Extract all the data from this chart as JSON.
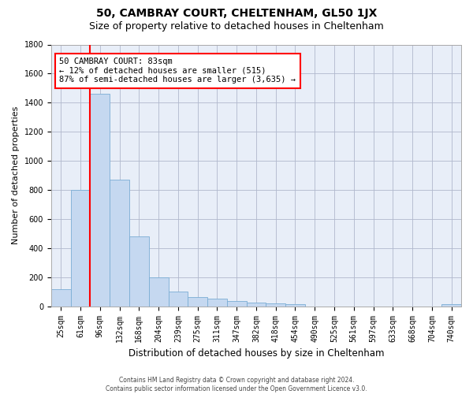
{
  "title": "50, CAMBRAY COURT, CHELTENHAM, GL50 1JX",
  "subtitle": "Size of property relative to detached houses in Cheltenham",
  "xlabel": "Distribution of detached houses by size in Cheltenham",
  "ylabel": "Number of detached properties",
  "footer_line1": "Contains HM Land Registry data © Crown copyright and database right 2024.",
  "footer_line2": "Contains public sector information licensed under the Open Government Licence v3.0.",
  "categories": [
    "25sqm",
    "61sqm",
    "96sqm",
    "132sqm",
    "168sqm",
    "204sqm",
    "239sqm",
    "275sqm",
    "311sqm",
    "347sqm",
    "382sqm",
    "418sqm",
    "454sqm",
    "490sqm",
    "525sqm",
    "561sqm",
    "597sqm",
    "633sqm",
    "668sqm",
    "704sqm",
    "740sqm"
  ],
  "values": [
    120,
    800,
    1460,
    870,
    480,
    200,
    100,
    65,
    50,
    35,
    28,
    20,
    12,
    0,
    0,
    0,
    0,
    0,
    0,
    0,
    15
  ],
  "bar_color": "#c5d8f0",
  "bar_edge_color": "#7aadd4",
  "vline_x": 1.5,
  "vline_color": "red",
  "annotation_text": "50 CAMBRAY COURT: 83sqm\n← 12% of detached houses are smaller (515)\n87% of semi-detached houses are larger (3,635) →",
  "annotation_box_color": "white",
  "annotation_box_edge": "red",
  "ylim": [
    0,
    1800
  ],
  "yticks": [
    0,
    200,
    400,
    600,
    800,
    1000,
    1200,
    1400,
    1600,
    1800
  ],
  "plot_background": "#e8eef8",
  "grid_color": "#b0b8cc",
  "title_fontsize": 10,
  "subtitle_fontsize": 9,
  "annot_fontsize": 7.5,
  "ylabel_fontsize": 8,
  "xlabel_fontsize": 8.5,
  "tick_fontsize": 7,
  "footer_fontsize": 5.5
}
